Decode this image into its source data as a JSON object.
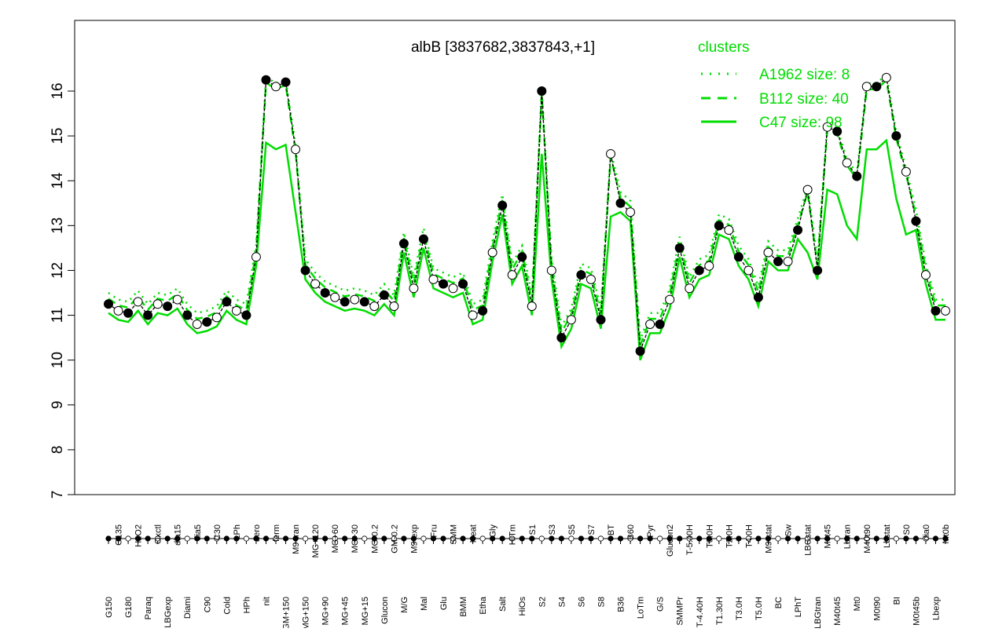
{
  "chart_data": {
    "type": "line",
    "title": "albB [3837682,3837843,+1]",
    "xlabel": "",
    "ylabel": "",
    "ylim": [
      7,
      16.5
    ],
    "yticks": [
      7,
      8,
      9,
      10,
      11,
      12,
      13,
      14,
      15,
      16
    ],
    "legend": {
      "title": "clusters",
      "placement": "top-right",
      "entries": [
        {
          "label": "A1962 size: 8",
          "style": "dotted"
        },
        {
          "label": "B112 size: 40",
          "style": "dashed"
        },
        {
          "label": "C47 size: 98",
          "style": "solid"
        }
      ]
    },
    "colors": {
      "cluster": "#00dd00",
      "points": "#000000"
    },
    "x_tick_labels": [
      "G150",
      "G135",
      "G180",
      "H2O2",
      "Paraq",
      "Oxctl",
      "LBGexp",
      "dia15",
      "Diami",
      "dia5",
      "C90",
      "C30",
      "Cold",
      "LPh",
      "HPh",
      "aero",
      "nit",
      "ferm",
      "GM+150",
      "M9-tran",
      "MG+150",
      "MG+120",
      "MG+90",
      "MG+60",
      "MG+45",
      "MG+30",
      "MG+15",
      "MG-0.2",
      "Glucon",
      "GM-0.2",
      "M/G",
      "M9-exp",
      "Mal",
      "Fru",
      "Glu",
      "SMM",
      "BMM",
      "Heat",
      "Etha",
      "Gly",
      "Salt",
      "HiTm",
      "HiOs",
      "S1",
      "S2",
      "S3",
      "S4",
      "S5",
      "S6",
      "S7",
      "S8",
      "BT",
      "B36",
      "B60",
      "LoTm",
      "Pyr",
      "G/S",
      "Glucon2",
      "SMMPr",
      "T-5.40H",
      "T-4.40H",
      "T0.0H",
      "T1.30H",
      "T2.0H",
      "T3.0H",
      "T4.0H",
      "T5.0H",
      "M9-stat",
      "BC",
      "Sw",
      "LPhT",
      "LBGstat",
      "LBGtran",
      "M0t45",
      "M40t45",
      "Lbtran",
      "Mt0",
      "M40t90",
      "M0t90",
      "Lbstat",
      "BI",
      "S0",
      "M0t45b",
      "dia0",
      "Lbexp",
      "Mt0b"
    ],
    "series": [
      {
        "name": "",
        "x": [
          1,
          2,
          3,
          4,
          5,
          6,
          7,
          8,
          9,
          10,
          11,
          12,
          13,
          14,
          15,
          16,
          17,
          18,
          19,
          20,
          21,
          22,
          23,
          24,
          25,
          26,
          27,
          28,
          29,
          30,
          31,
          32,
          33,
          34,
          35,
          36,
          37,
          38,
          39,
          40,
          41,
          42,
          43,
          44,
          45,
          46,
          47,
          48,
          49,
          50,
          51,
          52,
          53,
          54,
          55,
          56,
          57,
          58,
          59,
          60,
          61,
          62,
          63,
          64,
          65,
          66,
          67,
          68,
          69,
          70,
          71,
          72,
          73,
          74,
          75,
          76,
          77,
          78,
          79,
          80,
          81,
          82,
          83,
          84,
          85,
          86
        ],
        "values": [
          11.25,
          11.1,
          11.05,
          11.3,
          11.0,
          11.25,
          11.2,
          11.35,
          11.0,
          10.8,
          10.85,
          10.95,
          11.3,
          11.1,
          11.0,
          12.3,
          16.25,
          16.1,
          16.2,
          14.7,
          12.0,
          11.7,
          11.5,
          11.4,
          11.3,
          11.35,
          11.3,
          11.2,
          11.45,
          11.2,
          12.6,
          11.6,
          12.7,
          11.8,
          11.7,
          11.6,
          11.7,
          11.0,
          11.1,
          12.4,
          13.45,
          11.9,
          12.3,
          11.2,
          16.0,
          12.0,
          10.5,
          10.9,
          11.9,
          11.8,
          10.9,
          14.6,
          13.5,
          13.3,
          10.2,
          10.8,
          10.8,
          11.35,
          12.5,
          11.6,
          12.0,
          12.1,
          13.0,
          12.9,
          12.3,
          12.0,
          11.4,
          12.4,
          12.2,
          12.2,
          12.9,
          13.8,
          12.0,
          15.2,
          15.1,
          14.4,
          14.1,
          16.1,
          16.1,
          16.3,
          15.0,
          14.2,
          13.1,
          11.9,
          11.1,
          11.1
        ]
      }
    ]
  }
}
